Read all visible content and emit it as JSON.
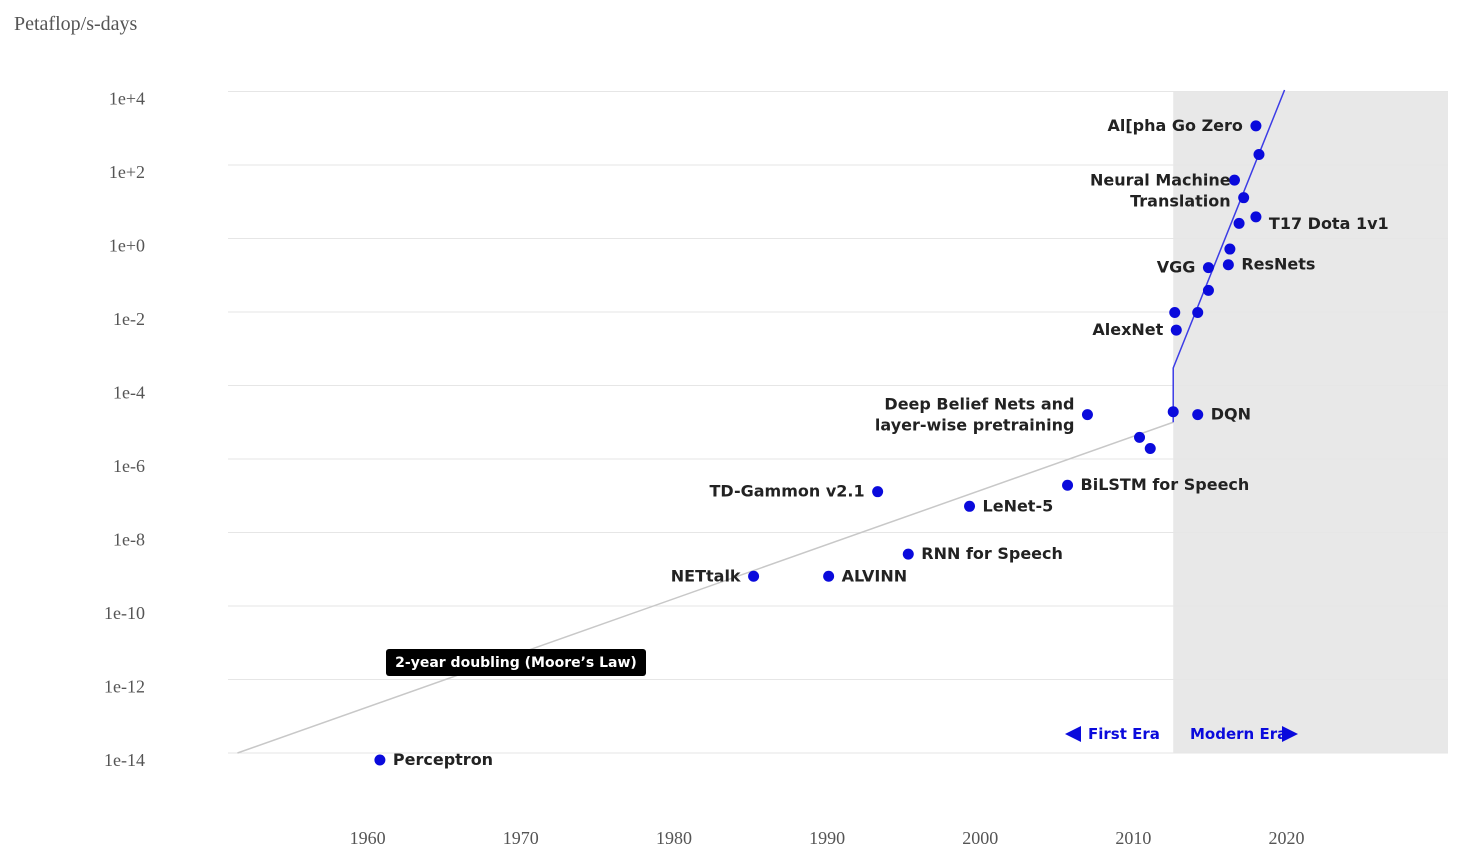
{
  "chart_data": {
    "type": "scatter",
    "ylabel": "Petaflop/s-days",
    "y_scale": "log10",
    "ylim": [
      "1e-14",
      "1e+4"
    ],
    "xlim": [
      1950,
      2030
    ],
    "x_ticks": [
      1960,
      1970,
      1980,
      1990,
      2000,
      2010,
      2020
    ],
    "y_ticks": [
      "1e+4",
      "1e+2",
      "1e+0",
      "1e-2",
      "1e-4",
      "1e-6",
      "1e-8",
      "1e-10",
      "1e-12",
      "1e-14"
    ],
    "grid": "horizontal",
    "points": [
      {
        "x": 1960.8,
        "y": "1e-14",
        "label": "Perceptron"
      },
      {
        "x": 1985.2,
        "y": "1e-9",
        "label": "NETtalk"
      },
      {
        "x": 1990.1,
        "y": "1e-9",
        "label": "ALVINN"
      },
      {
        "x": 1993.3,
        "y": "2e-7",
        "label": "TD-Gammon v2.1"
      },
      {
        "x": 1995.3,
        "y": "4e-9",
        "label": "RNN for Speech"
      },
      {
        "x": 1999.3,
        "y": "8e-8",
        "label": "LeNet-5"
      },
      {
        "x": 2005.7,
        "y": "3e-7",
        "label": "BiLSTM for Speech"
      },
      {
        "x": 2007.0,
        "y": "2.5e-5",
        "label": "Deep Belief Nets and layer-wise pretraining"
      },
      {
        "x": 2010.4,
        "y": "6e-6",
        "label": ""
      },
      {
        "x": 2011.1,
        "y": "3e-6",
        "label": ""
      },
      {
        "x": 2012.6,
        "y": "3e-5",
        "label": ""
      },
      {
        "x": 2014.2,
        "y": "2.5e-5",
        "label": "DQN"
      },
      {
        "x": 2012.8,
        "y": "0.005",
        "label": "AlexNet"
      },
      {
        "x": 2012.7,
        "y": "0.015",
        "label": ""
      },
      {
        "x": 2014.2,
        "y": "0.015",
        "label": ""
      },
      {
        "x": 2014.9,
        "y": "0.06",
        "label": ""
      },
      {
        "x": 2014.9,
        "y": "0.25",
        "label": "VGG"
      },
      {
        "x": 2016.2,
        "y": "0.3",
        "label": "ResNets"
      },
      {
        "x": 2016.3,
        "y": "0.8",
        "label": ""
      },
      {
        "x": 2016.9,
        "y": "4",
        "label": ""
      },
      {
        "x": 2017.2,
        "y": "20",
        "label": "Neural Machine Translation"
      },
      {
        "x": 2016.6,
        "y": "60",
        "label": ""
      },
      {
        "x": 2018.0,
        "y": "6",
        "label": "T17 Dota 1v1"
      },
      {
        "x": 2018.2,
        "y": "300",
        "label": ""
      },
      {
        "x": 2018.0,
        "y": "1800",
        "label": "Al[pha Go Zero"
      }
    ],
    "trend_lines": [
      {
        "name": "2-year doubling (Moore’s Law)",
        "points": [
          [
            1951.5,
            "1e-14"
          ],
          [
            2012.6,
            "1e-5"
          ]
        ]
      },
      {
        "name": "",
        "points": [
          [
            2012.6,
            "1e-5"
          ],
          [
            2012.6,
            "3e-4"
          ],
          [
            2020.0,
            "1.5e+4"
          ]
        ]
      }
    ],
    "annotations": {
      "moores_law": "2-year doubling (Moore’s Law)",
      "first_era": "First Era",
      "modern_era": "Modern Era"
    },
    "modern_era_start": 2012.6
  },
  "colors": {
    "point": "#0a0adc",
    "modern_trend": "#3c3ce6",
    "first_trend": "#c8c8c8",
    "modern_shade": "#e8e8e8",
    "grid": "#e6e6e6",
    "label_box": "#000000"
  }
}
